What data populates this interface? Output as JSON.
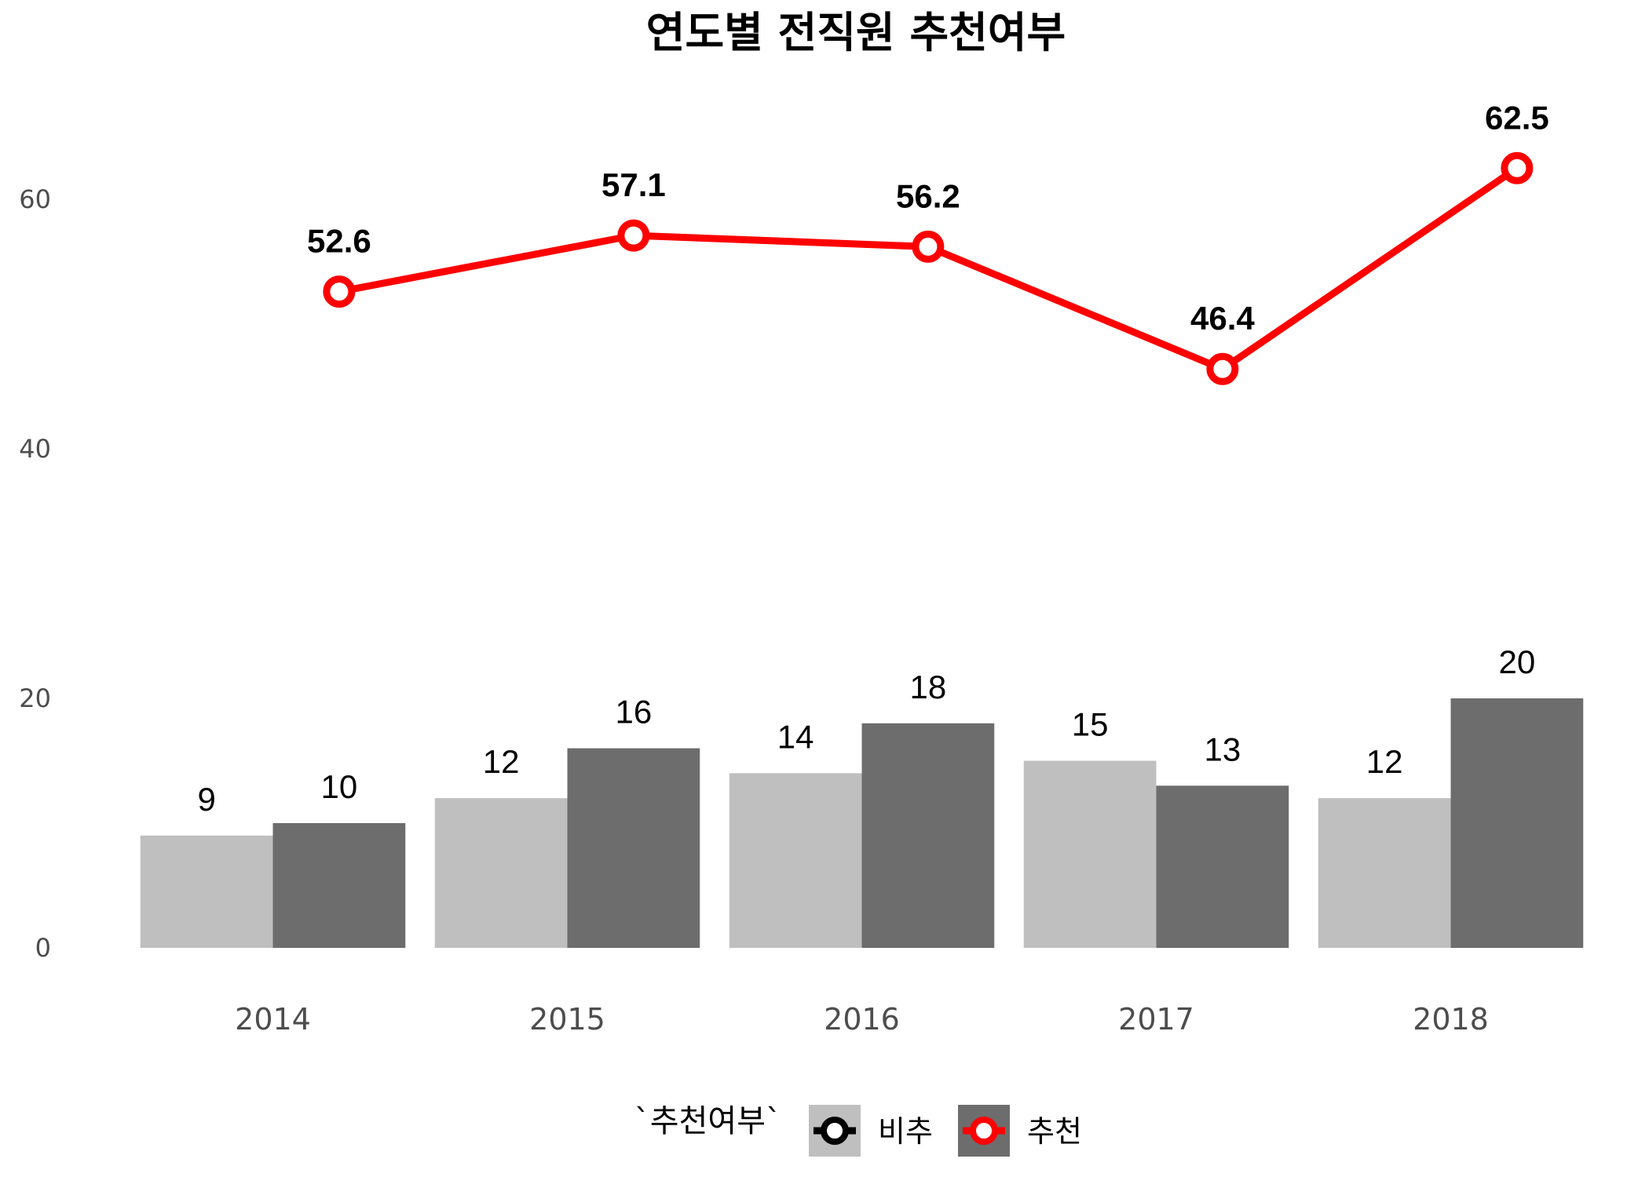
{
  "chart_data": {
    "type": "bar",
    "title": "연도별 전직원 추천여부",
    "xlabel": "",
    "ylabel": "",
    "categories": [
      "2014",
      "2015",
      "2016",
      "2017",
      "2018"
    ],
    "ylim": [
      0,
      70
    ],
    "yticks": [
      0,
      20,
      40,
      60
    ],
    "grid": false,
    "legend_position": "bottom",
    "legend_title": "`추천여부`",
    "series": [
      {
        "name": "비추",
        "kind": "bar",
        "values": [
          9,
          12,
          14,
          15,
          12
        ],
        "color": "#bfbfbf"
      },
      {
        "name": "추천",
        "kind": "bar",
        "values": [
          10,
          16,
          18,
          13,
          20
        ],
        "color": "#6d6d6d"
      }
    ],
    "line_series": {
      "kind": "line",
      "values": [
        52.6,
        57.1,
        56.2,
        46.4,
        62.5
      ],
      "labels": [
        "52.6",
        "57.1",
        "56.2",
        "46.4",
        "62.5"
      ],
      "color": "#ff0000",
      "marker": "open-circle"
    },
    "legend_items": [
      {
        "label": "비추",
        "fill": "#bfbfbf",
        "marker_color": "#000000"
      },
      {
        "label": "추천",
        "fill": "#6d6d6d",
        "marker_color": "#ff0000"
      }
    ]
  }
}
